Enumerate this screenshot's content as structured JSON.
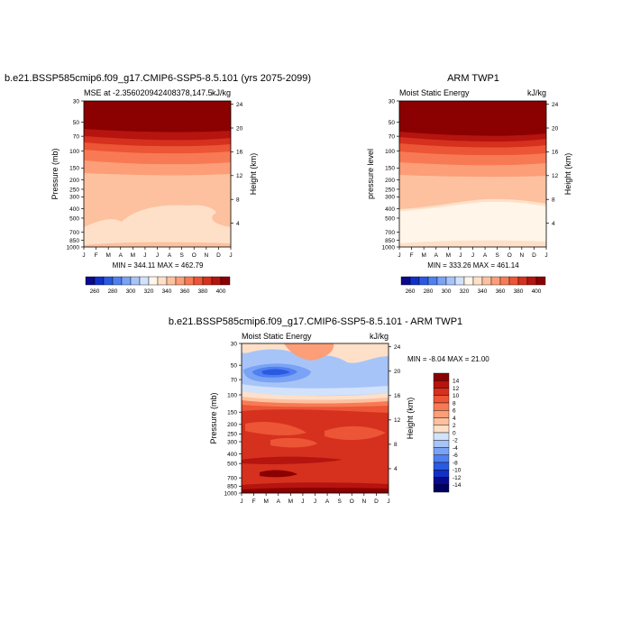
{
  "chart_data": [
    {
      "type": "heatmap",
      "title": "b.e21.BSSP585cmip6.f09_g17.CMIP6-SSP5-8.5.101 (yrs 2075-2099)",
      "subtitle_left": "MSE at -2.356020942408378,147.5",
      "subtitle_right": "kJ/kg",
      "ylabel": "Pressure (mb)",
      "ylabel_right": "Height (km)",
      "x_ticks": [
        "J",
        "F",
        "M",
        "A",
        "M",
        "J",
        "J",
        "A",
        "S",
        "O",
        "N",
        "D",
        "J"
      ],
      "y_ticks": [
        "30",
        "50",
        "70",
        "100",
        "150",
        "200",
        "250",
        "300",
        "400",
        "500",
        "700",
        "850",
        "1000"
      ],
      "y_ticks_right": [
        "24",
        "20",
        "16",
        "12",
        "8",
        "4"
      ],
      "stats": "MIN = 344.11 MAX = 462.79",
      "colorbar": {
        "labels": [
          "260",
          "280",
          "300",
          "320",
          "340",
          "360",
          "380",
          "400"
        ],
        "colors": [
          "#0a0a8c",
          "#1030c8",
          "#2a5ae0",
          "#4f7ff0",
          "#7aa2f5",
          "#a7c4f8",
          "#d2e2fb",
          "#fff5e8",
          "#fee0c8",
          "#fdc1a0",
          "#fc9e78",
          "#f87a55",
          "#ec5535",
          "#d6301e",
          "#b5140f",
          "#8b0000"
        ]
      },
      "ylim": [
        1000,
        30
      ],
      "xlim_months": [
        1,
        13
      ]
    },
    {
      "type": "heatmap",
      "title": "ARM TWP1",
      "subtitle_left": "Moist Static Energy",
      "subtitle_right": "kJ/kg",
      "ylabel": "pressure level",
      "ylabel_right": "Height (km)",
      "x_ticks": [
        "J",
        "F",
        "M",
        "A",
        "M",
        "J",
        "J",
        "A",
        "S",
        "O",
        "N",
        "D",
        "J"
      ],
      "y_ticks": [
        "30",
        "50",
        "70",
        "100",
        "150",
        "200",
        "250",
        "300",
        "400",
        "500",
        "700",
        "850",
        "1000"
      ],
      "y_ticks_right": [
        "24",
        "20",
        "16",
        "12",
        "8",
        "4"
      ],
      "stats": "MIN = 333.26 MAX = 461.14",
      "colorbar": {
        "labels": [
          "260",
          "280",
          "300",
          "320",
          "340",
          "360",
          "380",
          "400"
        ],
        "colors": [
          "#0a0a8c",
          "#1030c8",
          "#2a5ae0",
          "#4f7ff0",
          "#7aa2f5",
          "#a7c4f8",
          "#d2e2fb",
          "#fff5e8",
          "#fee0c8",
          "#fdc1a0",
          "#fc9e78",
          "#f87a55",
          "#ec5535",
          "#d6301e",
          "#b5140f",
          "#8b0000"
        ]
      },
      "ylim": [
        1000,
        30
      ],
      "xlim_months": [
        1,
        13
      ]
    },
    {
      "type": "heatmap",
      "title": "b.e21.BSSP585cmip6.f09_g17.CMIP6-SSP5-8.5.101 - ARM TWP1",
      "subtitle_left": "Moist Static Energy",
      "subtitle_right": "kJ/kg",
      "ylabel": "Pressure (mb)",
      "ylabel_right": "Height (km)",
      "x_ticks": [
        "J",
        "F",
        "M",
        "A",
        "M",
        "J",
        "J",
        "A",
        "S",
        "O",
        "N",
        "D",
        "J"
      ],
      "y_ticks": [
        "30",
        "50",
        "70",
        "100",
        "150",
        "200",
        "250",
        "300",
        "400",
        "500",
        "700",
        "850",
        "1000"
      ],
      "y_ticks_right": [
        "24",
        "20",
        "16",
        "12",
        "8",
        "4"
      ],
      "stats": "MIN =  -8.04 MAX =  21.00",
      "colorbar": {
        "labels": [
          "14",
          "12",
          "10",
          "8",
          "6",
          "4",
          "2",
          "0",
          "-2",
          "-4",
          "-6",
          "-8",
          "-10",
          "-12",
          "-14"
        ],
        "colors": [
          "#8b0000",
          "#b5140f",
          "#d6301e",
          "#ec5535",
          "#f87a55",
          "#fc9e78",
          "#fdc1a0",
          "#fee0c8",
          "#d2e2fb",
          "#a7c4f8",
          "#7aa2f5",
          "#4f7ff0",
          "#2a5ae0",
          "#1030c8",
          "#0a0a8c",
          "#000060"
        ]
      },
      "ylim": [
        1000,
        30
      ],
      "xlim_months": [
        1,
        13
      ]
    }
  ]
}
